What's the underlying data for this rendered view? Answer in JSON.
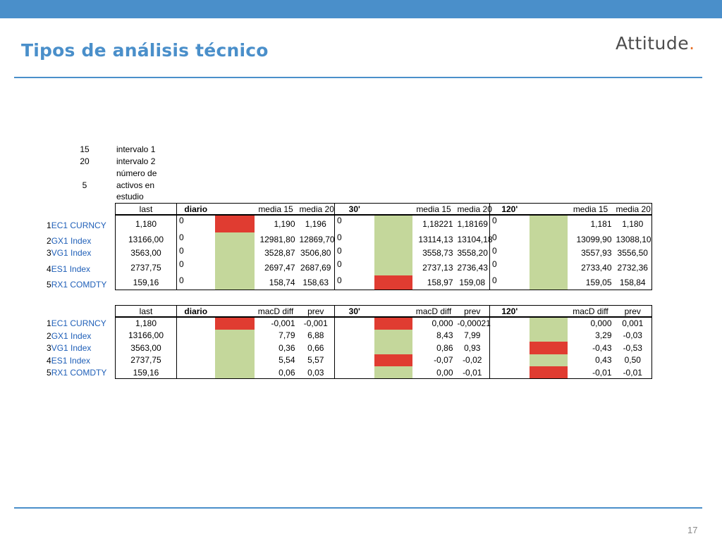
{
  "header": {
    "title": "Tipos de análisis técnico",
    "logo_text": "Attitude",
    "logo_dot": "."
  },
  "footer": {
    "page_number": "17"
  },
  "params": [
    {
      "value": "15",
      "label": "intervalo 1"
    },
    {
      "value": "20",
      "label": "intervalo 2"
    },
    {
      "value": "5",
      "label_lines": [
        "número de",
        "activos en",
        "estudio"
      ]
    }
  ],
  "table1": {
    "headers": {
      "last": "last",
      "diario": "diario",
      "media15a": "media 15",
      "media20a": "media 20",
      "t30": "30'",
      "media15b": "media 15",
      "media20b": "media 20",
      "t120": "120'",
      "media15c": "media 15",
      "media20c": "media 20"
    },
    "rows": [
      {
        "n": "1",
        "name": "EC1 CURNCY",
        "last": "1,180",
        "d": "0",
        "dcolor": "red",
        "m15a": "1,190",
        "m20a": "1,196",
        "s30": "0",
        "c30": "green",
        "m15b": "1,18221",
        "m20b": "1,18169",
        "s120": "0",
        "c120": "green",
        "m15c": "1,181",
        "m20c": "1,180"
      },
      {
        "n": "2",
        "name": "GX1 Index",
        "last": "13166,00",
        "d": "0",
        "dcolor": "green",
        "m15a": "12981,80",
        "m20a": "12869,70",
        "s30": "0",
        "c30": "green",
        "m15b": "13114,13",
        "m20b": "13104,18",
        "s120": "0",
        "c120": "green",
        "m15c": "13099,90",
        "m20c": "13088,10"
      },
      {
        "n": "3",
        "name": "VG1 Index",
        "last": "3563,00",
        "d": "0",
        "dcolor": "green",
        "m15a": "3528,87",
        "m20a": "3506,80",
        "s30": "0",
        "c30": "green",
        "m15b": "3558,73",
        "m20b": "3558,20",
        "s120": "0",
        "c120": "green",
        "m15c": "3557,93",
        "m20c": "3556,50"
      },
      {
        "n": "4",
        "name": "ES1 Index",
        "last": "2737,75",
        "d": "0",
        "dcolor": "green",
        "m15a": "2697,47",
        "m20a": "2687,69",
        "s30": "0",
        "c30": "green",
        "m15b": "2737,13",
        "m20b": "2736,43",
        "s120": "0",
        "c120": "green",
        "m15c": "2733,40",
        "m20c": "2732,36"
      },
      {
        "n": "5",
        "name": "RX1 COMDTY",
        "last": "159,16",
        "d": "0",
        "dcolor": "green",
        "m15a": "158,74",
        "m20a": "158,63",
        "s30": "0",
        "c30": "red",
        "m15b": "158,97",
        "m20b": "159,08",
        "s120": "0",
        "c120": "green",
        "m15c": "159,05",
        "m20c": "158,84"
      }
    ]
  },
  "table2": {
    "headers": {
      "last": "last",
      "diario": "diario",
      "diffa": "macD diff",
      "preva": "prev",
      "t30": "30'",
      "diffb": "macD diff",
      "prevb": "prev",
      "t120": "120'",
      "diffc": "macD diff",
      "prevc": "prev"
    },
    "rows": [
      {
        "n": "1",
        "name": "EC1 CURNCY",
        "last": "1,180",
        "dcolor": "red",
        "da": "-0,001",
        "pa": "-0,001",
        "c30": "red",
        "db": "0,000",
        "pb": "-0,00021",
        "c120": "green",
        "dc": "0,000",
        "pc": "0,001"
      },
      {
        "n": "2",
        "name": "GX1 Index",
        "last": "13166,00",
        "dcolor": "green",
        "da": "7,79",
        "pa": "6,88",
        "c30": "green",
        "db": "8,43",
        "pb": "7,99",
        "c120": "green",
        "dc": "3,29",
        "pc": "-0,03"
      },
      {
        "n": "3",
        "name": "VG1 Index",
        "last": "3563,00",
        "dcolor": "green",
        "da": "0,36",
        "pa": "0,66",
        "c30": "green",
        "db": "0,86",
        "pb": "0,93",
        "c120": "red",
        "dc": "-0,43",
        "pc": "-0,53"
      },
      {
        "n": "4",
        "name": "ES1 Index",
        "last": "2737,75",
        "dcolor": "green",
        "da": "5,54",
        "pa": "5,57",
        "c30": "red",
        "db": "-0,07",
        "pb": "-0,02",
        "c120": "green",
        "dc": "0,43",
        "pc": "0,50"
      },
      {
        "n": "5",
        "name": "RX1 COMDTY",
        "last": "159,16",
        "dcolor": "green",
        "da": "0,06",
        "pa": "0,03",
        "c30": "green",
        "db": "0,00",
        "pb": "-0,01",
        "c120": "red",
        "dc": "-0,01",
        "pc": "-0,01"
      }
    ]
  },
  "colors": {
    "accent": "#4a8fca",
    "green": "#c4d79b",
    "red": "#e03c31",
    "logo_dot": "#e8722a"
  }
}
